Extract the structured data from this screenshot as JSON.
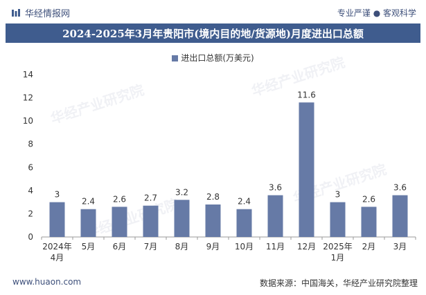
{
  "header": {
    "brand": "华经情报网",
    "slogan": "专业严谨 ● 客观科学"
  },
  "title": "2024-2025年3月年贵阳市(境内目的地/货源地)月度进出口总额",
  "footer": {
    "website": "www.huaon.com",
    "source": "数据来源：中国海关，华经产业研究院整理"
  },
  "watermark": "华经产业研究院",
  "colors": {
    "bar": "#667aa6",
    "title_bg": "#3f5c8e"
  },
  "chart_data": {
    "type": "bar",
    "categories": [
      "2024年\n4月",
      "5月",
      "6月",
      "7月",
      "8月",
      "9月",
      "10月",
      "11月",
      "12月",
      "2025年\n1月",
      "2月",
      "3月"
    ],
    "series": [
      {
        "name": "进出口总额(万美元)",
        "values": [
          3,
          2.4,
          2.6,
          2.7,
          3.2,
          2.8,
          2.4,
          3.6,
          11.6,
          3,
          2.6,
          3.6
        ]
      }
    ],
    "data_labels": [
      "3",
      "2.4",
      "2.6",
      "2.7",
      "3.2",
      "2.8",
      "2.4",
      "3.6",
      "11.6",
      "3",
      "2.6",
      "3.6"
    ],
    "ylim": [
      0,
      14
    ],
    "yticks": [
      0,
      2,
      4,
      6,
      8,
      10,
      12,
      14
    ],
    "legend_position": "top-center",
    "grid": false
  }
}
